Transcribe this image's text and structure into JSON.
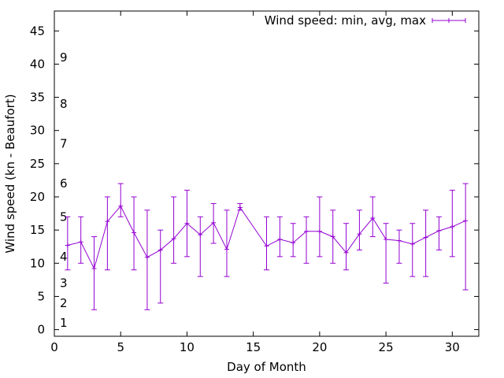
{
  "chart_data": {
    "type": "line",
    "xlabel": "Day of Month",
    "ylabel": "Wind speed (kn - Beaufort)",
    "xlim": [
      0,
      32
    ],
    "ylim": [
      -1,
      48
    ],
    "xticks": [
      0,
      5,
      10,
      15,
      20,
      25,
      30
    ],
    "yticks": [
      0,
      5,
      10,
      15,
      20,
      25,
      30,
      35,
      40,
      45
    ],
    "grid": false,
    "legend_position": "top-right",
    "series": [
      {
        "name": "Wind speed: min, avg, max",
        "color": "#9400d3",
        "error_bars": true,
        "points": [
          {
            "x": 1,
            "min": 9,
            "avg": 12.7,
            "max": 17
          },
          {
            "x": 2,
            "min": 10,
            "avg": 13.2,
            "max": 17
          },
          {
            "x": 3,
            "min": 3,
            "avg": 9.2,
            "max": 14
          },
          {
            "x": 4,
            "min": 9,
            "avg": 16.3,
            "max": 20
          },
          {
            "x": 5,
            "min": 17,
            "avg": 18.6,
            "max": 22
          },
          {
            "x": 6,
            "min": 9,
            "avg": 14.6,
            "max": 20
          },
          {
            "x": 7,
            "min": 3,
            "avg": 10.9,
            "max": 18
          },
          {
            "x": 8,
            "min": 4,
            "avg": 12.0,
            "max": 15
          },
          {
            "x": 9,
            "min": 10,
            "avg": 13.7,
            "max": 20
          },
          {
            "x": 10,
            "min": 11,
            "avg": 16.0,
            "max": 21
          },
          {
            "x": 11,
            "min": 8,
            "avg": 14.3,
            "max": 17
          },
          {
            "x": 12,
            "min": 13,
            "avg": 16.1,
            "max": 19
          },
          {
            "x": 13,
            "min": 8,
            "avg": 12.1,
            "max": 18
          },
          {
            "x": 14,
            "min": 18,
            "avg": 18.4,
            "max": 19
          },
          {
            "x": 16,
            "min": 9,
            "avg": 12.6,
            "max": 17
          },
          {
            "x": 17,
            "min": 11,
            "avg": 13.6,
            "max": 17
          },
          {
            "x": 18,
            "min": 11,
            "avg": 13.1,
            "max": 16
          },
          {
            "x": 19,
            "min": 10,
            "avg": 14.8,
            "max": 17
          },
          {
            "x": 20,
            "min": 11,
            "avg": 14.8,
            "max": 20
          },
          {
            "x": 21,
            "min": 10,
            "avg": 14.0,
            "max": 18
          },
          {
            "x": 22,
            "min": 9,
            "avg": 11.6,
            "max": 16
          },
          {
            "x": 23,
            "min": 12,
            "avg": 14.4,
            "max": 18
          },
          {
            "x": 24,
            "min": 14,
            "avg": 16.8,
            "max": 20
          },
          {
            "x": 25,
            "min": 7,
            "avg": 13.6,
            "max": 16
          },
          {
            "x": 26,
            "min": 10,
            "avg": 13.4,
            "max": 15
          },
          {
            "x": 27,
            "min": 8,
            "avg": 12.9,
            "max": 16
          },
          {
            "x": 28,
            "min": 8,
            "avg": 13.9,
            "max": 18
          },
          {
            "x": 29,
            "min": 12,
            "avg": 14.9,
            "max": 17
          },
          {
            "x": 30,
            "min": 11,
            "avg": 15.5,
            "max": 21
          },
          {
            "x": 31,
            "min": 6,
            "avg": 16.4,
            "max": 22
          }
        ]
      }
    ],
    "annotations": [
      {
        "text": "1",
        "y": 1
      },
      {
        "text": "2",
        "y": 4
      },
      {
        "text": "3",
        "y": 7
      },
      {
        "text": "4",
        "y": 11
      },
      {
        "text": "5",
        "y": 17
      },
      {
        "text": "6",
        "y": 22
      },
      {
        "text": "7",
        "y": 28
      },
      {
        "text": "8",
        "y": 34
      },
      {
        "text": "9",
        "y": 41
      }
    ]
  }
}
